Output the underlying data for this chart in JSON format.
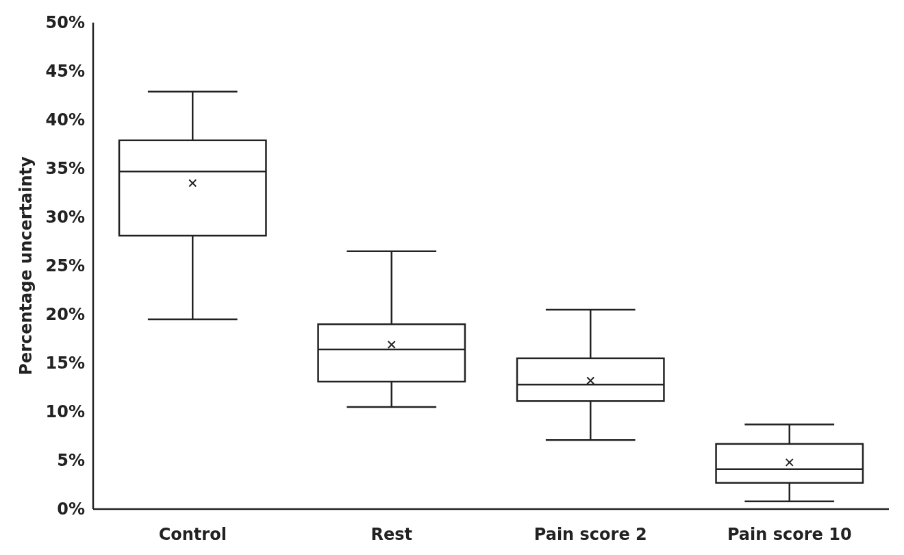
{
  "chart_data": {
    "type": "box",
    "ylabel": "Percentage uncertainty",
    "categories": [
      "Control",
      "Rest",
      "Pain score 2",
      "Pain score 10"
    ],
    "boxes": [
      {
        "low": 19.5,
        "q1": 28.1,
        "median": 34.7,
        "q3": 37.9,
        "high": 42.9,
        "mean": 33.5
      },
      {
        "low": 10.5,
        "q1": 13.1,
        "median": 16.4,
        "q3": 19.0,
        "high": 26.5,
        "mean": 16.9
      },
      {
        "low": 7.1,
        "q1": 11.1,
        "median": 12.8,
        "q3": 15.5,
        "high": 20.5,
        "mean": 13.2
      },
      {
        "low": 0.8,
        "q1": 2.7,
        "median": 4.1,
        "q3": 6.7,
        "high": 8.7,
        "mean": 4.8
      }
    ],
    "ylim": [
      0,
      50
    ],
    "yticks": [
      {
        "value": 0,
        "label": "0%"
      },
      {
        "value": 5,
        "label": "5%"
      },
      {
        "value": 10,
        "label": "10%"
      },
      {
        "value": 15,
        "label": "15%"
      },
      {
        "value": 20,
        "label": "20%"
      },
      {
        "value": 25,
        "label": "25%"
      },
      {
        "value": 30,
        "label": "30%"
      },
      {
        "value": 35,
        "label": "35%"
      },
      {
        "value": 40,
        "label": "40%"
      },
      {
        "value": 45,
        "label": "45%"
      },
      {
        "value": 50,
        "label": "50%"
      }
    ],
    "grid": false
  }
}
